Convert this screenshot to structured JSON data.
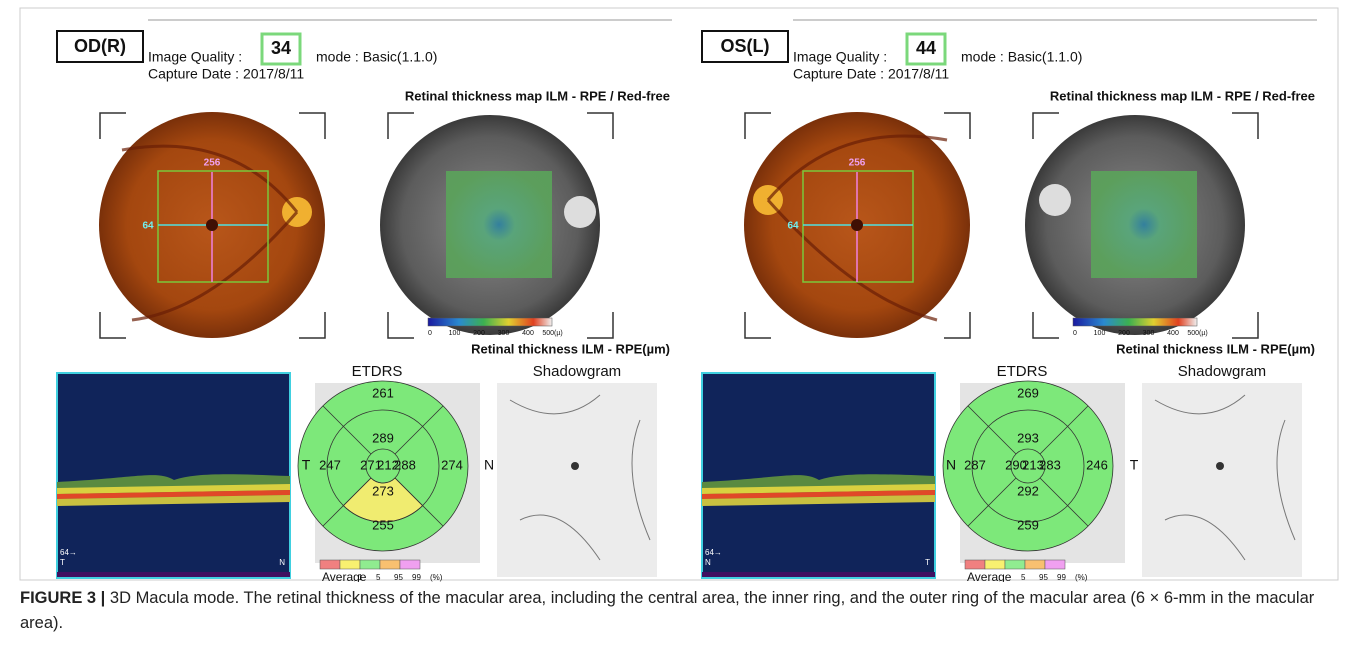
{
  "panels": [
    {
      "eye": "OD(R)",
      "image_quality_label": "Image Quality :",
      "image_quality": "34",
      "mode": "mode : Basic(1.1.0)",
      "capture_date": "Capture Date : 2017/8/11",
      "map_title": "Retinal thickness map ILM - RPE / Red-free",
      "thickness_title": "Retinal thickness ILM - RPE(µm)",
      "fundus_annotations": [
        "256",
        "64"
      ],
      "colorbar_ticks": [
        "0",
        "100",
        "200",
        "300",
        "400",
        "500(µ)"
      ],
      "bscan_labels": [
        "64→",
        "T",
        "N"
      ],
      "etdrs_title": "ETDRS",
      "shadowgram_title": "Shadowgram",
      "etdrs": {
        "side_left": "T",
        "side_right": "N",
        "outer": {
          "superior": "261",
          "temporal_left": "247",
          "nasal_right": "274",
          "inferior": "255"
        },
        "inner": {
          "superior": "289",
          "left": "271",
          "right": "288",
          "inferior": "273"
        },
        "center": "212",
        "highlighted_sector": "inner.inferior"
      },
      "legend_labels": [
        "Average",
        "1",
        "5",
        "95",
        "99",
        "(%)"
      ]
    },
    {
      "eye": "OS(L)",
      "image_quality_label": "Image Quality :",
      "image_quality": "44",
      "mode": "mode : Basic(1.1.0)",
      "capture_date": "Capture Date : 2017/8/11",
      "map_title": "Retinal thickness map ILM - RPE / Red-free",
      "thickness_title": "Retinal thickness ILM - RPE(µm)",
      "fundus_annotations": [
        "256",
        "64"
      ],
      "colorbar_ticks": [
        "0",
        "100",
        "200",
        "300",
        "400",
        "500(µ)"
      ],
      "bscan_labels": [
        "64→",
        "N",
        "T"
      ],
      "etdrs_title": "ETDRS",
      "shadowgram_title": "Shadowgram",
      "etdrs": {
        "side_left": "N",
        "side_right": "T",
        "outer": {
          "superior": "269",
          "temporal_left": "287",
          "nasal_right": "246",
          "inferior": "259"
        },
        "inner": {
          "superior": "293",
          "left": "290",
          "right": "283",
          "inferior": "292"
        },
        "center": "213"
      },
      "legend_labels": [
        "Average",
        "5",
        "95",
        "99",
        "(%)"
      ]
    }
  ],
  "caption": {
    "label": "FIGURE 3 |",
    "text": "3D Macula mode. The retinal thickness of the macular area, including the central area, the inner ring, and the outer ring of the macular area (6 × 6-mm in the macular area)."
  }
}
